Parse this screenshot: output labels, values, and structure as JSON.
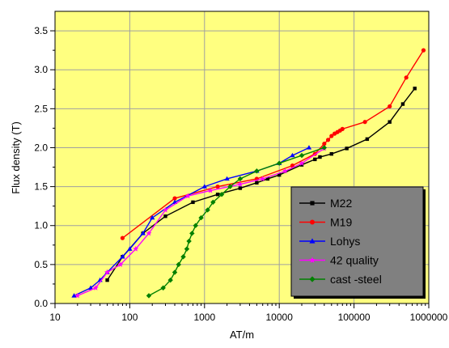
{
  "chart_data": {
    "type": "line",
    "xlabel": "AT/m",
    "ylabel": "Flux density (T)",
    "x_scale": "log",
    "xlim": [
      10,
      1000000
    ],
    "ylim": [
      0.0,
      3.75
    ],
    "x_ticks": [
      {
        "value": 10,
        "label": "10"
      },
      {
        "value": 100,
        "label": "100"
      },
      {
        "value": 1000,
        "label": "1000"
      },
      {
        "value": 10000,
        "label": "10000"
      },
      {
        "value": 100000,
        "label": "100000"
      },
      {
        "value": 1000000,
        "label": "1000000"
      }
    ],
    "y_ticks": [
      {
        "value": 0.0,
        "label": "0.0"
      },
      {
        "value": 0.5,
        "label": "0.5"
      },
      {
        "value": 1.0,
        "label": "1.0"
      },
      {
        "value": 1.5,
        "label": "1.5"
      },
      {
        "value": 2.0,
        "label": "2.0"
      },
      {
        "value": 2.5,
        "label": "2.5"
      },
      {
        "value": 3.0,
        "label": "3.0"
      },
      {
        "value": 3.5,
        "label": "3.5"
      }
    ],
    "grid": true,
    "legend_position": "bottom-right",
    "colors": {
      "plot_background": "#ffff80",
      "legend_background": "#808080",
      "grid": "#a0a0a0"
    },
    "series": [
      {
        "name": "M22",
        "color": "#000000",
        "marker": "square",
        "points": [
          [
            50,
            0.3
          ],
          [
            80,
            0.6
          ],
          [
            150,
            0.9
          ],
          [
            300,
            1.12
          ],
          [
            700,
            1.3
          ],
          [
            1500,
            1.4
          ],
          [
            3000,
            1.48
          ],
          [
            5000,
            1.55
          ],
          [
            7000,
            1.6
          ],
          [
            10000,
            1.65
          ],
          [
            20000,
            1.78
          ],
          [
            30000,
            1.85
          ],
          [
            35000,
            1.88
          ],
          [
            50000,
            1.92
          ],
          [
            80000,
            1.99
          ],
          [
            150000,
            2.11
          ],
          [
            300000,
            2.33
          ],
          [
            450000,
            2.56
          ],
          [
            650000,
            2.76
          ]
        ]
      },
      {
        "name": "M19",
        "color": "#ff0000",
        "marker": "circle",
        "points": [
          [
            80,
            0.84
          ],
          [
            400,
            1.35
          ],
          [
            1500,
            1.5
          ],
          [
            5000,
            1.6
          ],
          [
            15000,
            1.77
          ],
          [
            30000,
            1.92
          ],
          [
            40000,
            2.05
          ],
          [
            45000,
            2.1
          ],
          [
            50000,
            2.15
          ],
          [
            55000,
            2.18
          ],
          [
            60000,
            2.2
          ],
          [
            65000,
            2.22
          ],
          [
            70000,
            2.24
          ],
          [
            140000,
            2.33
          ],
          [
            300000,
            2.53
          ],
          [
            500000,
            2.9
          ],
          [
            850000,
            3.25
          ]
        ]
      },
      {
        "name": "Lohys",
        "color": "#0000ff",
        "marker": "triangle",
        "points": [
          [
            18,
            0.1
          ],
          [
            30,
            0.2
          ],
          [
            40,
            0.3
          ],
          [
            50,
            0.4
          ],
          [
            80,
            0.6
          ],
          [
            100,
            0.7
          ],
          [
            150,
            0.9
          ],
          [
            200,
            1.1
          ],
          [
            400,
            1.3
          ],
          [
            1000,
            1.5
          ],
          [
            2000,
            1.6
          ],
          [
            5000,
            1.7
          ],
          [
            10000,
            1.8
          ],
          [
            15000,
            1.9
          ],
          [
            25000,
            2.0
          ]
        ]
      },
      {
        "name": "42 quality",
        "color": "#ff00ff",
        "marker": "star",
        "points": [
          [
            20,
            0.1
          ],
          [
            35,
            0.2
          ],
          [
            50,
            0.4
          ],
          [
            75,
            0.5
          ],
          [
            120,
            0.7
          ],
          [
            180,
            0.9
          ],
          [
            300,
            1.2
          ],
          [
            600,
            1.38
          ],
          [
            1200,
            1.45
          ],
          [
            3000,
            1.53
          ],
          [
            6000,
            1.6
          ],
          [
            12000,
            1.7
          ],
          [
            20000,
            1.8
          ],
          [
            40000,
            1.99
          ]
        ]
      },
      {
        "name": "cast -steel",
        "color": "#008000",
        "marker": "diamond",
        "points": [
          [
            180,
            0.1
          ],
          [
            280,
            0.2
          ],
          [
            350,
            0.3
          ],
          [
            400,
            0.4
          ],
          [
            450,
            0.5
          ],
          [
            520,
            0.6
          ],
          [
            580,
            0.7
          ],
          [
            620,
            0.8
          ],
          [
            680,
            0.9
          ],
          [
            760,
            1.0
          ],
          [
            900,
            1.1
          ],
          [
            1100,
            1.2
          ],
          [
            1300,
            1.3
          ],
          [
            1700,
            1.4
          ],
          [
            2200,
            1.5
          ],
          [
            3000,
            1.6
          ],
          [
            5000,
            1.7
          ],
          [
            10000,
            1.8
          ],
          [
            20000,
            1.9
          ],
          [
            40000,
            2.0
          ]
        ]
      }
    ]
  }
}
